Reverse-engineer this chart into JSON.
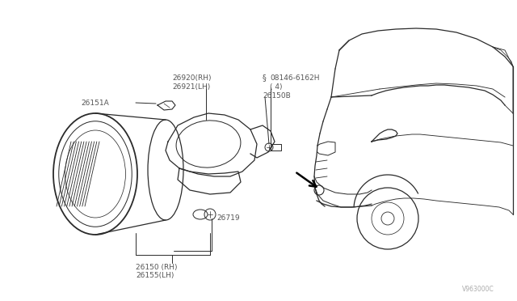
{
  "bg_color": "#ffffff",
  "line_color": "#2a2a2a",
  "label_color": "#555555",
  "labels": {
    "26151A": "26151A",
    "26920RH": "26920(RH)",
    "26921LH": "26921(LH)",
    "08146": "08146-6162H",
    "08146_4": "( 4)",
    "26150B": "26150B",
    "26719": "26719",
    "26150RH": "26150 (RH)",
    "26155LH": "26155(LH)",
    "V963000C": "V963000C"
  }
}
